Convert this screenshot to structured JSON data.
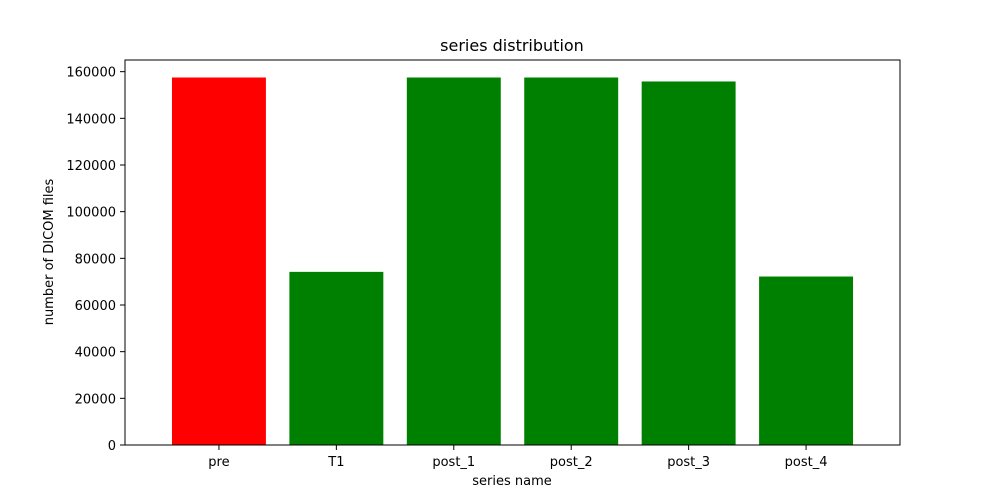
{
  "chart_data": {
    "type": "bar",
    "title": "series distribution",
    "xlabel": "series name",
    "ylabel": "number of DICOM files",
    "categories": [
      "pre",
      "T1",
      "post_1",
      "post_2",
      "post_3",
      "post_4"
    ],
    "values": [
      157500,
      74200,
      157500,
      157500,
      155800,
      72200
    ],
    "bar_colors": [
      "#ff0000",
      "#008000",
      "#008000",
      "#008000",
      "#008000",
      "#008000"
    ],
    "ylim": [
      0,
      165000
    ],
    "yticks": [
      0,
      20000,
      40000,
      60000,
      80000,
      100000,
      120000,
      140000,
      160000
    ],
    "grid": false
  }
}
